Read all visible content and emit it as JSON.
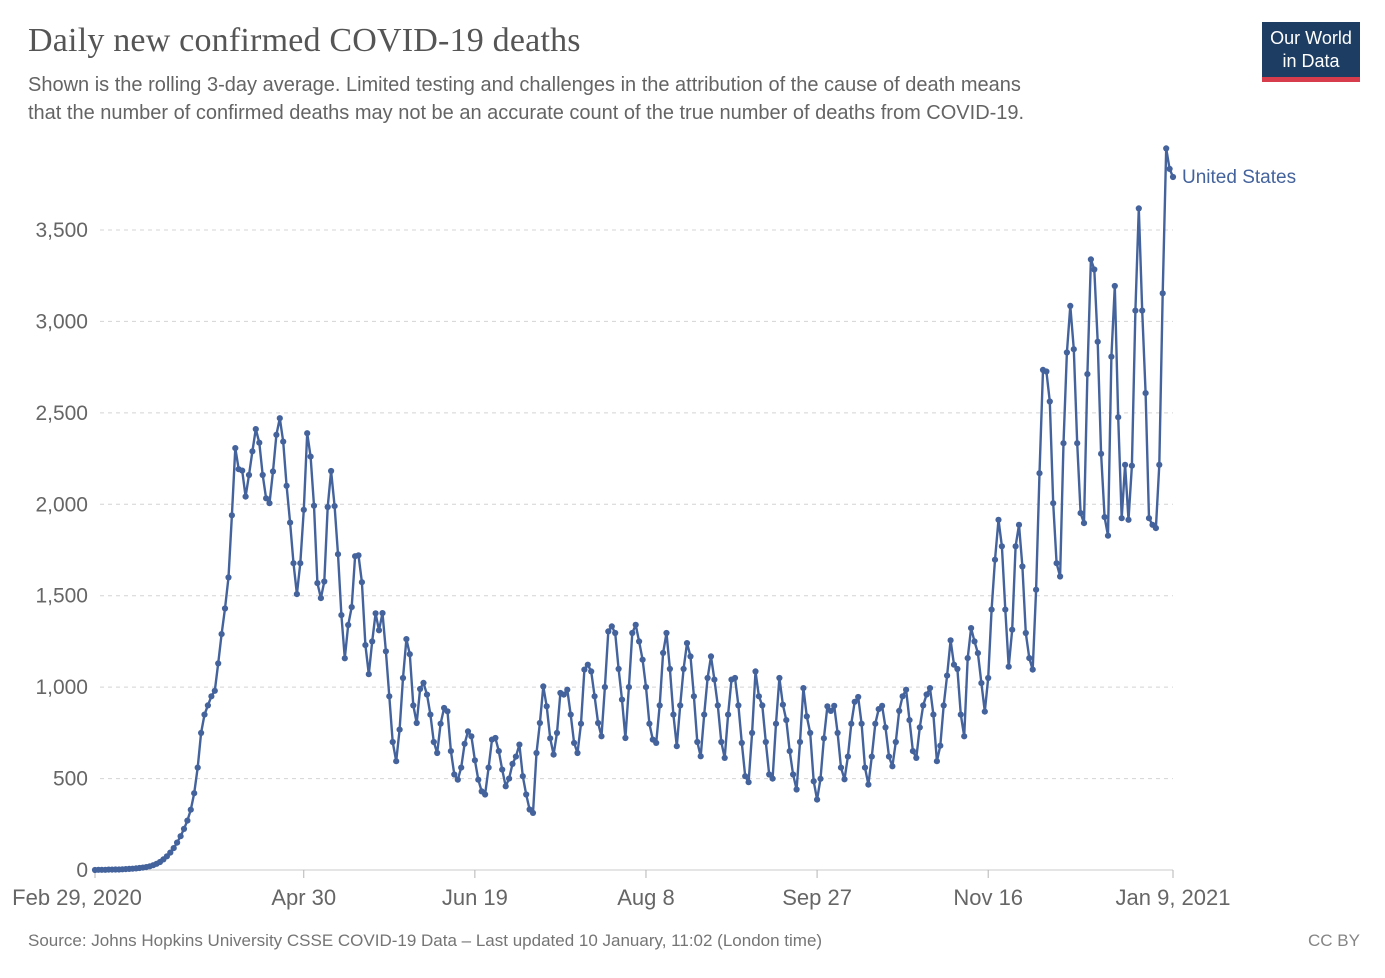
{
  "header": {
    "title": "Daily new confirmed COVID-19 deaths",
    "subtitle_line1": "Shown is the rolling 3-day average. Limited testing and challenges in the attribution of the cause of death means",
    "subtitle_line2": "that the number of confirmed deaths may not be an accurate count of the true number of deaths from COVID-19."
  },
  "logo": {
    "line1": "Our World",
    "line2": "in Data",
    "bg_color": "#1d3d63",
    "stripe_color": "#d73c4c"
  },
  "footer": {
    "source": "Source: Johns Hopkins University CSSE COVID-19 Data – Last updated 10 January, 11:02 (London time)",
    "license": "CC BY"
  },
  "chart_data": {
    "type": "line",
    "title": "Daily new confirmed COVID-19 deaths",
    "grid": "dashed-horizontal",
    "legend": "inline-end-label",
    "ylim": [
      0,
      4000
    ],
    "y_ticks": [
      0,
      500,
      1000,
      1500,
      2000,
      2500,
      3000,
      3500
    ],
    "x_ticks": [
      {
        "day": 0,
        "label": "Feb 29, 2020"
      },
      {
        "day": 61,
        "label": "Apr 30"
      },
      {
        "day": 111,
        "label": "Jun 19"
      },
      {
        "day": 161,
        "label": "Aug 8"
      },
      {
        "day": 211,
        "label": "Sep 27"
      },
      {
        "day": 261,
        "label": "Nov 16"
      },
      {
        "day": 315,
        "label": "Jan 9, 2021"
      }
    ],
    "series": [
      {
        "name": "United States",
        "color": "#44639c",
        "start_date": "2020-02-29",
        "end_date": "2021-01-09",
        "values": [
          0,
          1,
          1,
          1,
          2,
          2,
          3,
          3,
          4,
          5,
          6,
          7,
          9,
          11,
          13,
          16,
          20,
          26,
          34,
          44,
          58,
          75,
          95,
          120,
          150,
          185,
          225,
          270,
          330,
          420,
          560,
          750,
          850,
          900,
          950,
          980,
          1130,
          1290,
          1430,
          1600,
          1940,
          2307,
          2192,
          2184,
          2042,
          2160,
          2290,
          2411,
          2337,
          2160,
          2033,
          2006,
          2180,
          2380,
          2471,
          2343,
          2101,
          1900,
          1678,
          1509,
          1678,
          1970,
          2389,
          2261,
          1992,
          1569,
          1487,
          1578,
          1985,
          2182,
          1990,
          1727,
          1394,
          1158,
          1340,
          1438,
          1716,
          1721,
          1574,
          1230,
          1071,
          1250,
          1404,
          1311,
          1405,
          1196,
          950,
          700,
          595,
          768,
          1050,
          1263,
          1180,
          900,
          804,
          990,
          1023,
          959,
          850,
          700,
          640,
          800,
          886,
          868,
          650,
          522,
          494,
          560,
          690,
          758,
          731,
          600,
          494,
          430,
          413,
          560,
          713,
          722,
          650,
          549,
          458,
          500,
          580,
          620,
          686,
          513,
          413,
          331,
          312,
          640,
          804,
          1004,
          895,
          720,
          631,
          750,
          968,
          959,
          986,
          850,
          695,
          640,
          800,
          1096,
          1123,
          1086,
          950,
          804,
          731,
          1000,
          1305,
          1332,
          1296,
          1100,
          932,
          722,
          1000,
          1296,
          1341,
          1250,
          1150,
          1000,
          800,
          713,
          695,
          900,
          1187,
          1296,
          1100,
          850,
          677,
          900,
          1100,
          1241,
          1168,
          950,
          700,
          622,
          850,
          1050,
          1168,
          1041,
          900,
          700,
          613,
          850,
          1041,
          1050,
          900,
          695,
          513,
          480,
          750,
          1086,
          950,
          900,
          700,
          522,
          500,
          800,
          1050,
          904,
          820,
          650,
          522,
          440,
          700,
          995,
          840,
          750,
          485,
          385,
          499,
          720,
          895,
          870,
          898,
          750,
          560,
          496,
          620,
          800,
          920,
          946,
          800,
          560,
          467,
          620,
          800,
          880,
          898,
          780,
          620,
          567,
          700,
          870,
          950,
          986,
          820,
          650,
          613,
          780,
          900,
          960,
          995,
          850,
          595,
          680,
          900,
          1063,
          1256,
          1123,
          1099,
          850,
          731,
          1159,
          1323,
          1250,
          1186,
          1022,
          866,
          1050,
          1424,
          1697,
          1915,
          1770,
          1424,
          1112,
          1314,
          1770,
          1888,
          1660,
          1296,
          1159,
          1096,
          1533,
          2170,
          2735,
          2726,
          2562,
          2006,
          1678,
          1605,
          2334,
          2830,
          3085,
          2848,
          2334,
          1952,
          1897,
          2712,
          3339,
          3284,
          2889,
          2276,
          1930,
          1828,
          2807,
          3194,
          2476,
          1924,
          2216,
          1915,
          2211,
          3059,
          3618,
          3059,
          2608,
          1924,
          1888,
          1870,
          2216,
          3154,
          3946,
          3834,
          3790
        ]
      }
    ]
  }
}
